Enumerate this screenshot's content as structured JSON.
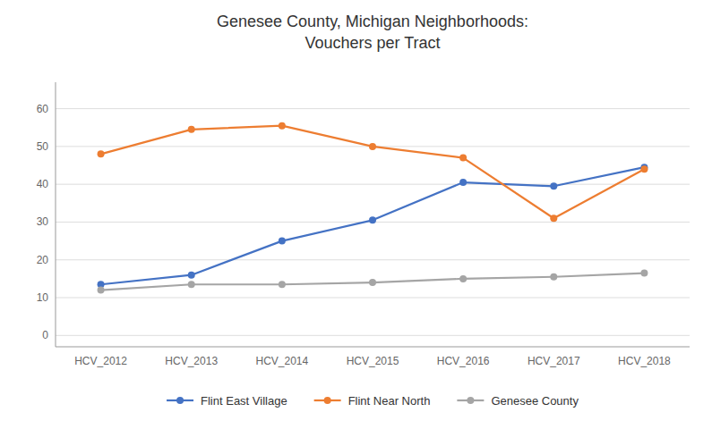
{
  "chart_data": {
    "type": "line",
    "title": "Genesee County, Michigan Neighborhoods:\nVouchers per Tract",
    "categories": [
      "HCV_2012",
      "HCV_2013",
      "HCV_2014",
      "HCV_2015",
      "HCV_2016",
      "HCV_2017",
      "HCV_2018"
    ],
    "series": [
      {
        "name": "Flint East Village",
        "color": "#4472C4",
        "marker": "circle",
        "values": [
          13.5,
          16.0,
          25.0,
          30.5,
          40.5,
          39.5,
          44.5
        ]
      },
      {
        "name": "Flint Near North",
        "color": "#ED7D31",
        "marker": "circle",
        "values": [
          48.0,
          54.5,
          55.5,
          50.0,
          47.0,
          31.0,
          44.0
        ]
      },
      {
        "name": "Genesee County",
        "color": "#A5A5A5",
        "marker": "circle",
        "values": [
          12.0,
          13.5,
          13.5,
          14.0,
          15.0,
          15.5,
          16.5
        ]
      }
    ],
    "ylim": [
      -3,
      67
    ],
    "yticks": [
      0,
      10,
      20,
      30,
      40,
      50,
      60
    ],
    "grid": true,
    "legend": "bottom"
  }
}
